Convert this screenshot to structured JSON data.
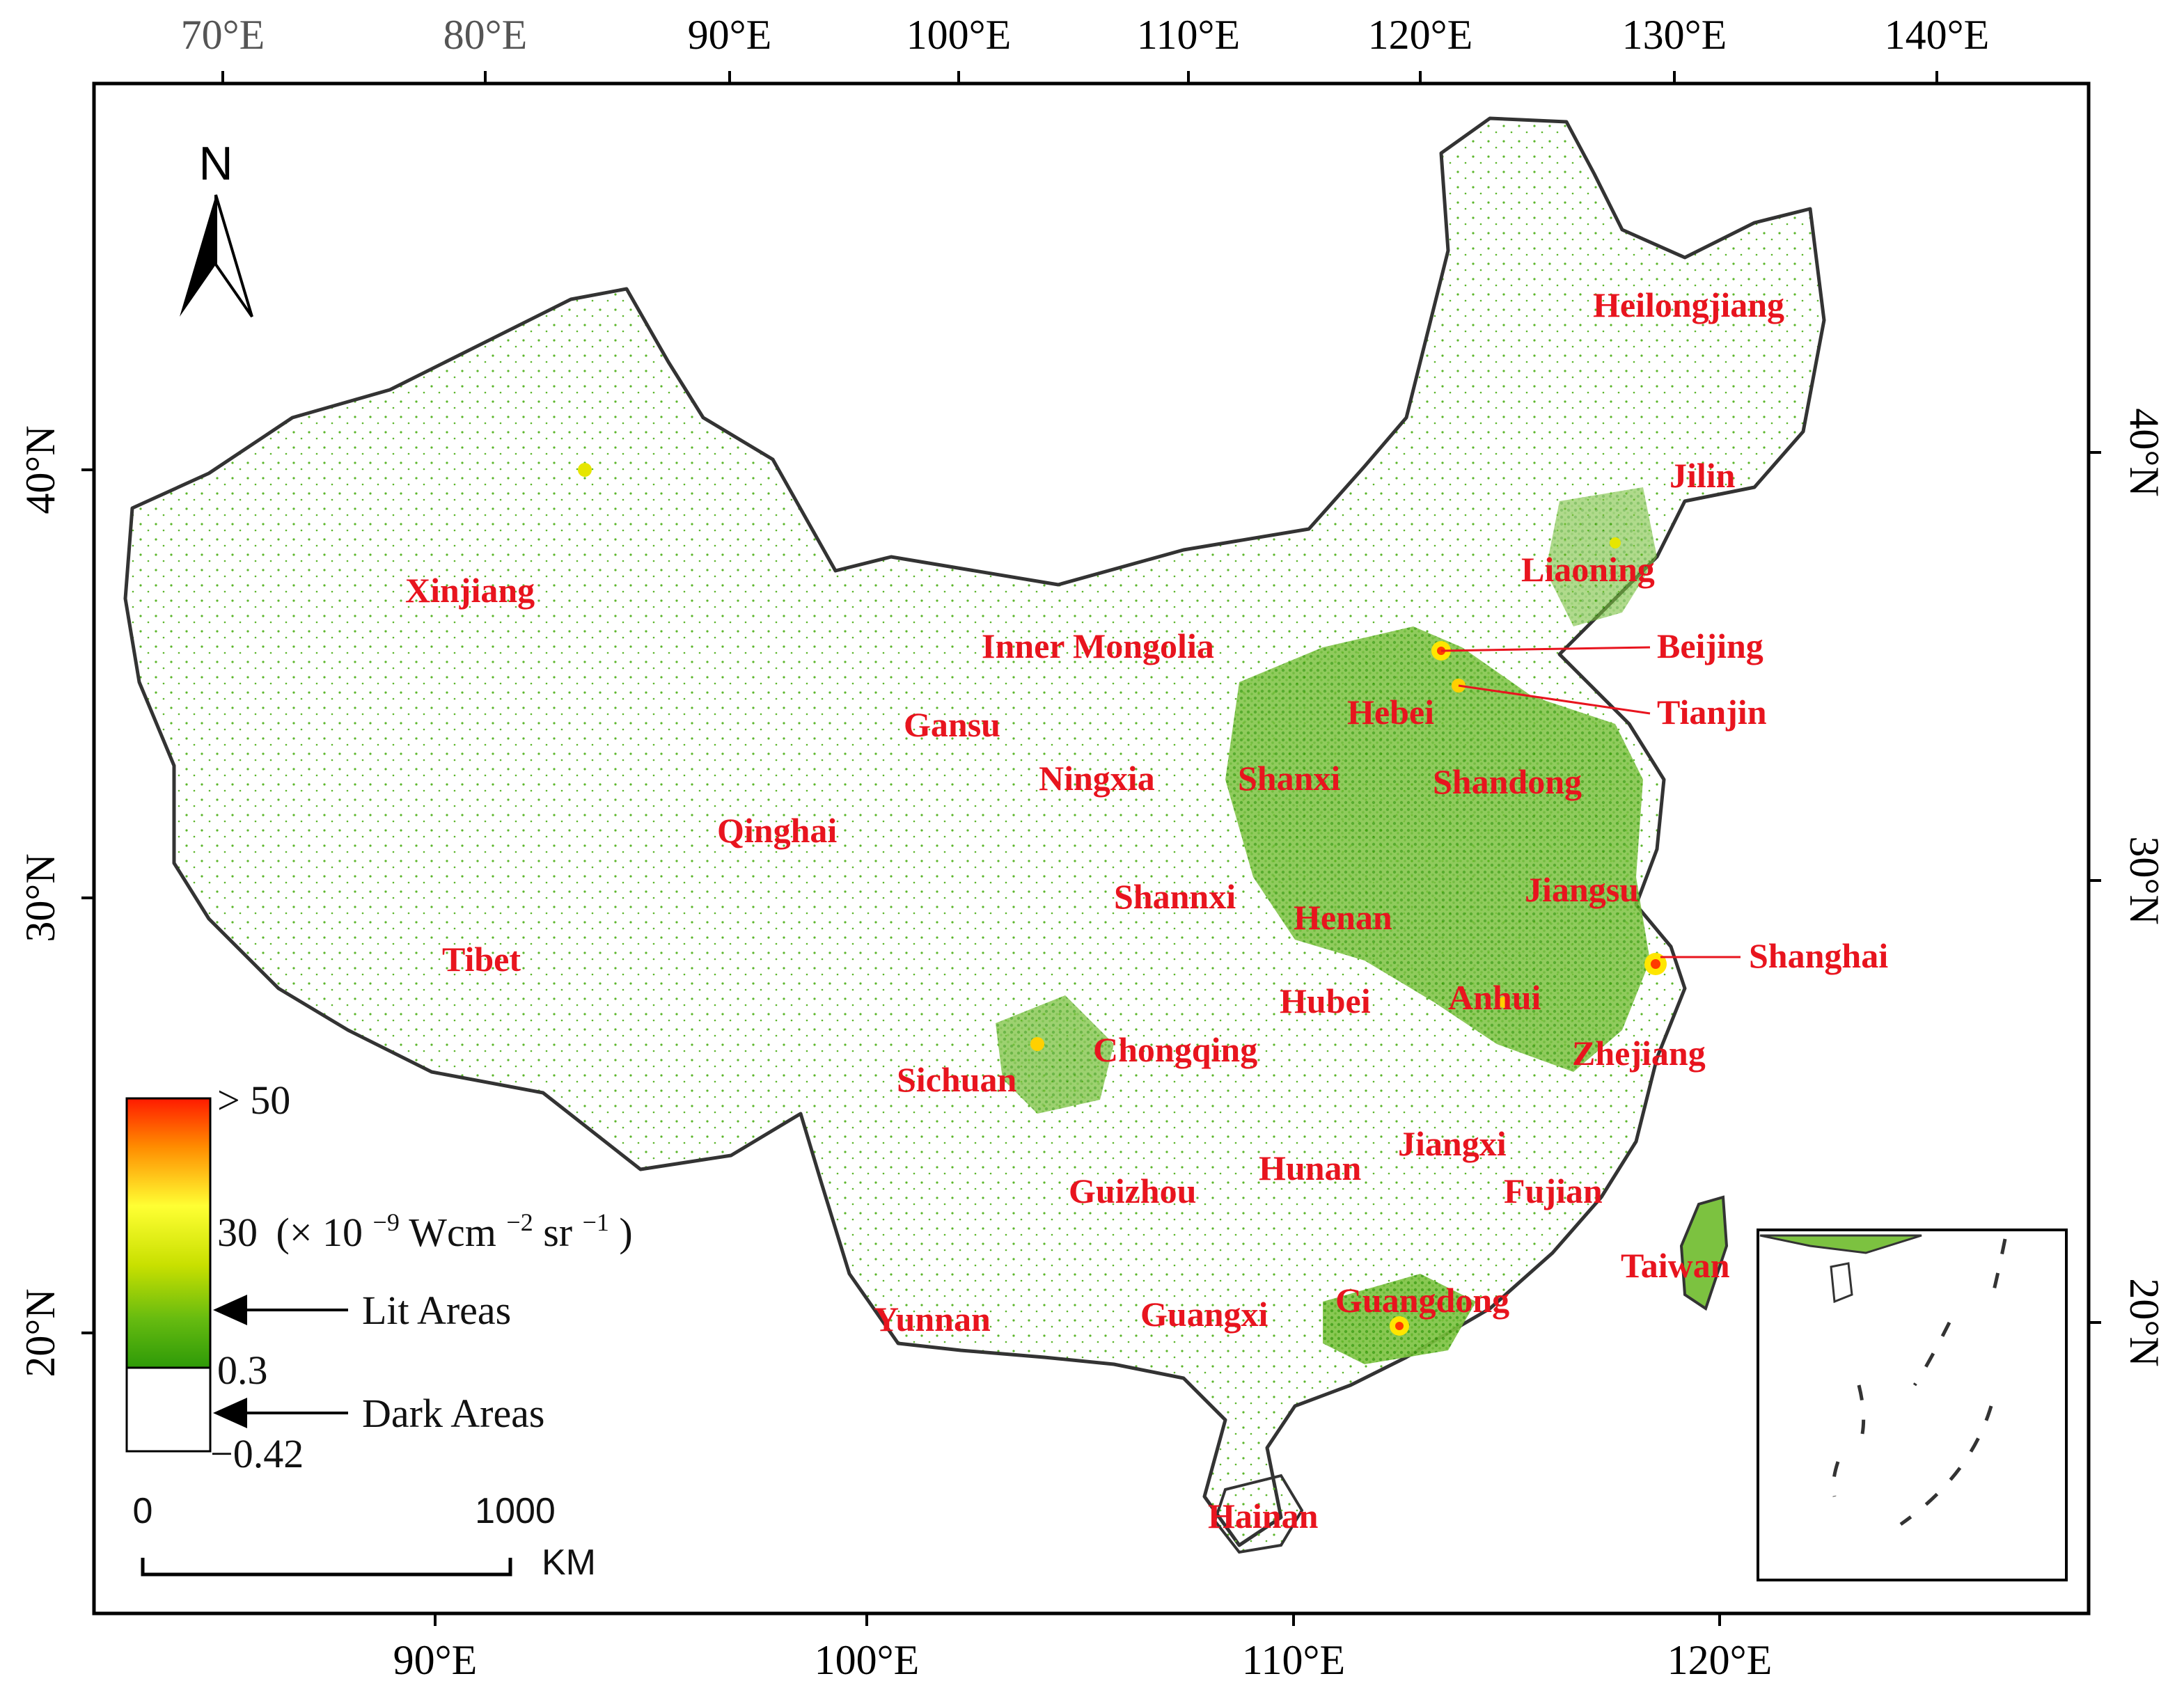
{
  "map": {
    "top_axis_labels": [
      "70°E",
      "80°E",
      "90°E",
      "100°E",
      "110°E",
      "120°E",
      "130°E",
      "140°E"
    ],
    "bottom_axis_labels": [
      "90°E",
      "100°E",
      "110°E",
      "120°E"
    ],
    "left_axis_labels": [
      "40°N",
      "30°N",
      "20°N"
    ],
    "right_axis_labels": [
      "40°N",
      "30°N",
      "20°N"
    ],
    "north_label": "N",
    "provinces": {
      "xinjiang": "Xinjiang",
      "tibet": "Tibet",
      "qinghai": "Qinghai",
      "gansu": "Gansu",
      "inner_mongolia": "Inner Mongolia",
      "ningxia": "Ningxia",
      "shanxi": "Shanxi",
      "hebei": "Hebei",
      "shandong": "Shandong",
      "heilongjiang": "Heilongjiang",
      "jilin": "Jilin",
      "liaoning": "Liaoning",
      "beijing": "Beijing",
      "tianjin": "Tianjin",
      "shannxi": "Shannxi",
      "henan": "Henan",
      "jiangsu": "Jiangsu",
      "shanghai": "Shanghai",
      "anhui": "Anhui",
      "hubei": "Hubei",
      "zhejiang": "Zhejiang",
      "sichuan": "Sichuan",
      "chongqing": "Chongqing",
      "hunan": "Hunan",
      "jiangxi": "Jiangxi",
      "guizhou": "Guizhou",
      "fujian": "Fujian",
      "taiwan": "Taiwan",
      "yunnan": "Yunnan",
      "guangxi": "Guangxi",
      "guangdong": "Guangdong",
      "hainan": "Hainan"
    },
    "legend": {
      "max_label": "> 50",
      "mid_value": "30",
      "mid_unit_prefix": "(× 10",
      "mid_unit_exp1": "−9",
      "mid_unit_mid": "Wcm",
      "mid_unit_exp2": "−2",
      "mid_unit_sr": " sr",
      "mid_unit_exp3": "−1",
      "mid_unit_close": ")",
      "lit_threshold": "0.3",
      "min_label": "−0.42",
      "lit_areas": "Lit Areas",
      "dark_areas": "Dark Areas"
    },
    "scale_bar": {
      "start": "0",
      "end": "1000",
      "unit": "KM"
    },
    "colors": {
      "lit_low": "#3aa30b",
      "lit_mid": "#e6e600",
      "lit_high": "#ff1a00",
      "label_red": "#e8141e",
      "border": "#333333"
    }
  }
}
